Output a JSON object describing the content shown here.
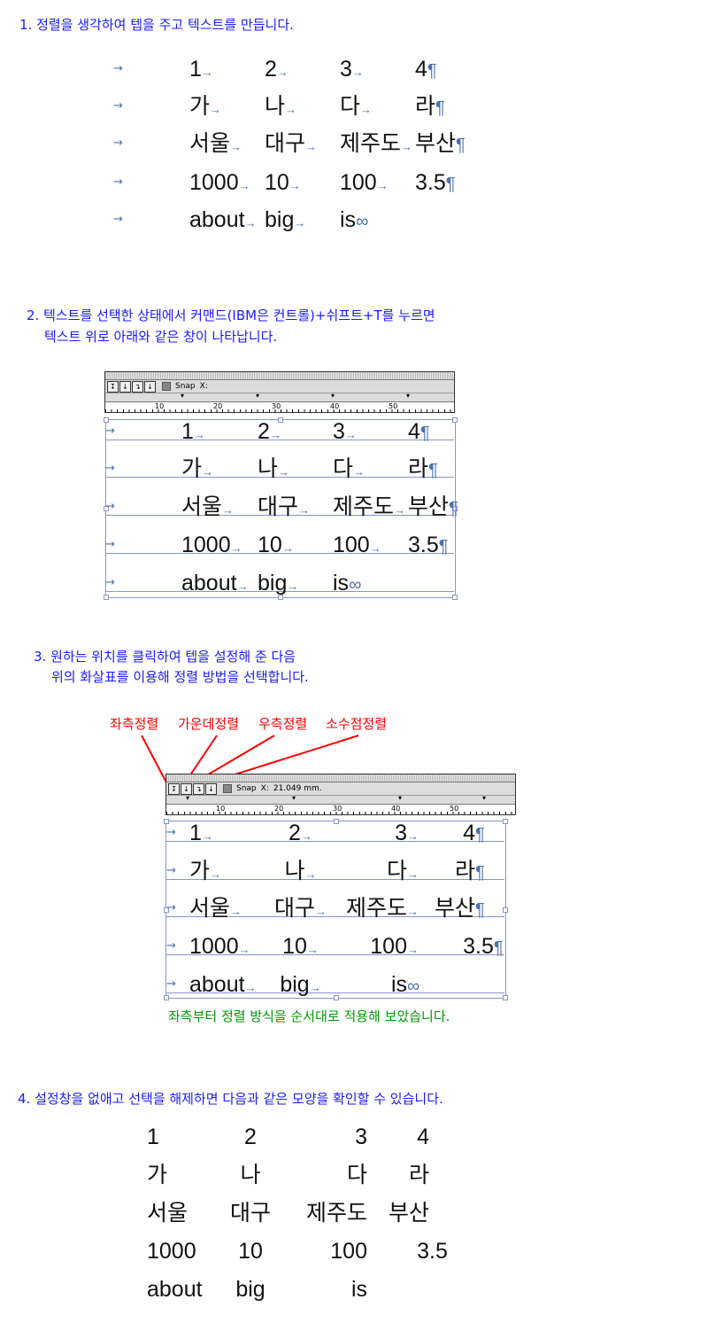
{
  "step1": {
    "heading": "1. 정렬을 생각하여 텝을 주고 텍스트를 만듭니다."
  },
  "step2": {
    "heading_line1": "2. 텍스트를 선택한 상태에서 커맨드(IBM은 컨트롤)+쉬프트+T를 누르면",
    "heading_line2": "텍스트 위로 아래와 같은 창이 나타납니다."
  },
  "step3": {
    "heading_line1": "3. 원하는 위치를 클릭하여 텝을 설정해 준 다음",
    "heading_line2": "위의 화살표를 이용해 정렬 방법을 선택합니다.",
    "align_labels": [
      "좌측정렬",
      "가운데정렬",
      "우측정렬",
      "소수점정렬"
    ],
    "caption": "좌측부터 정렬 방식을 순서대로 적용해 보았습니다."
  },
  "step4": {
    "heading": "4. 설정창을 없애고 선택을 해제하면 다음과 같은 모양을 확인할 수 있습니다."
  },
  "tab_panel_1": {
    "snap_label": "Snap",
    "x_label": "X:",
    "x_value": "",
    "ruler": [
      "10",
      "20",
      "30",
      "40",
      "50"
    ]
  },
  "tab_panel_2": {
    "snap_label": "Snap",
    "x_label": "X:",
    "x_value": "21.049 mm.",
    "ruler": [
      "10",
      "20",
      "30",
      "40",
      "50"
    ]
  },
  "rows": [
    [
      "1",
      "2",
      "3",
      "4"
    ],
    [
      "가",
      "나",
      "다",
      "라"
    ],
    [
      "서울",
      "대구",
      "제주도",
      "부산"
    ],
    [
      "1000",
      "10",
      "100",
      "3.5"
    ],
    [
      "about",
      "big",
      "is"
    ]
  ],
  "colors": {
    "heading": "#1a1aff",
    "label": "#ff0000",
    "caption": "#009900",
    "marker": "#4a70b0"
  }
}
